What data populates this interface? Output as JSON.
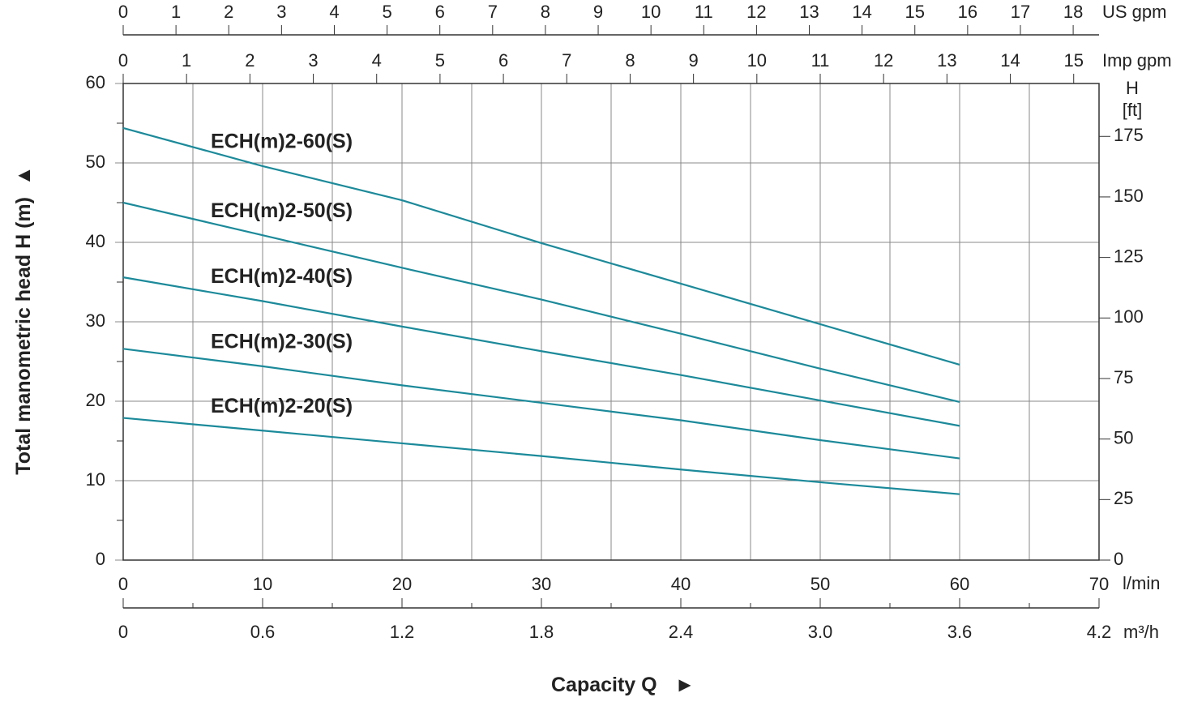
{
  "chart_data": {
    "type": "line",
    "xlabel": "Capacity Q",
    "xlabel_arrow": "►",
    "ylabel": "Total manometric head H (m)",
    "ylabel_arrow": "▲",
    "x_unit": "l/min",
    "x": [
      0,
      10,
      20,
      30,
      40,
      50,
      60
    ],
    "xlim": [
      0,
      70
    ],
    "xticks": [
      0,
      10,
      20,
      30,
      40,
      50,
      60,
      70
    ],
    "xminorticks": [
      5,
      15,
      25,
      35,
      45,
      55,
      65
    ],
    "ylim": [
      0,
      60
    ],
    "yticks": [
      0,
      10,
      20,
      30,
      40,
      50,
      60
    ],
    "yminorticks": [
      5,
      15,
      25,
      35,
      45,
      55
    ],
    "y2label": "H",
    "y2unit": "[ft]",
    "y2lim": [
      0,
      196.85
    ],
    "y2ticks": [
      0,
      25,
      50,
      75,
      100,
      125,
      150,
      175
    ],
    "grid": true,
    "color": "#1b8a9a",
    "series": [
      {
        "name": "ECH(m)2-60(S)",
        "color": "#1b8a9a",
        "values": [
          54.4,
          49.6,
          45.3,
          39.9,
          34.8,
          29.7,
          24.6
        ]
      },
      {
        "name": "ECH(m)2-50(S)",
        "color": "#1b8a9a",
        "values": [
          45.0,
          40.9,
          36.8,
          32.8,
          28.5,
          24.1,
          19.9
        ]
      },
      {
        "name": "ECH(m)2-40(S)",
        "color": "#1b8a9a",
        "values": [
          35.6,
          32.6,
          29.4,
          26.3,
          23.3,
          20.1,
          16.9
        ]
      },
      {
        "name": "ECH(m)2-30(S)",
        "color": "#1b8a9a",
        "values": [
          26.6,
          24.4,
          22.0,
          19.8,
          17.6,
          15.1,
          12.8
        ]
      },
      {
        "name": "ECH(m)2-20(S)",
        "color": "#1b8a9a",
        "values": [
          17.9,
          16.3,
          14.7,
          13.1,
          11.4,
          9.8,
          8.3
        ]
      }
    ],
    "extra_x_axes": [
      {
        "unit": "m³/h",
        "position": "bottom",
        "lim": [
          0,
          4.2
        ],
        "ticks": [
          0,
          0.6,
          1.2,
          1.8,
          2.4,
          {
            "value": 3,
            "label": "3.0"
          },
          3.6,
          4.2
        ],
        "minorticks": [
          0.3,
          0.9,
          1.5,
          2.1,
          2.7,
          3.3,
          3.9
        ]
      },
      {
        "unit": "US gpm",
        "position": "top",
        "lim": [
          0,
          18.49
        ],
        "ticks": [
          0,
          1,
          2,
          3,
          4,
          5,
          6,
          7,
          8,
          9,
          10,
          11,
          12,
          13,
          14,
          15,
          16,
          17,
          18
        ]
      },
      {
        "unit": "Imp gpm",
        "position": "top",
        "lim": [
          0,
          15.4
        ],
        "ticks": [
          0,
          1,
          2,
          3,
          4,
          5,
          6,
          7,
          8,
          9,
          10,
          11,
          12,
          13,
          14,
          15
        ]
      }
    ]
  }
}
